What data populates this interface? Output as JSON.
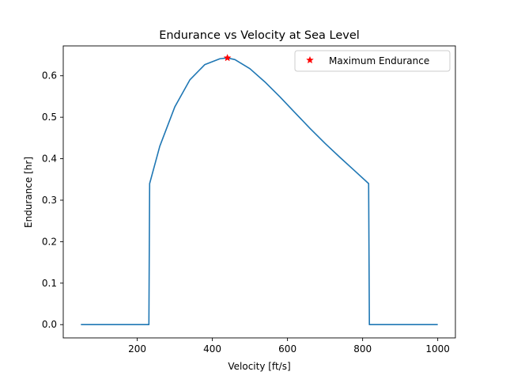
{
  "chart_data": {
    "type": "line",
    "title": "Endurance vs Velocity at Sea Level",
    "xlabel": "Velocity [ft/s]",
    "ylabel": "Endurance [hr]",
    "xlim": [
      3,
      1047
    ],
    "ylim": [
      -0.032,
      0.672
    ],
    "xticks": [
      200,
      400,
      600,
      800,
      1000
    ],
    "xtick_labels": [
      "200",
      "400",
      "600",
      "800",
      "1000"
    ],
    "yticks": [
      0.0,
      0.1,
      0.2,
      0.3,
      0.4,
      0.5,
      0.6
    ],
    "ytick_labels": [
      "0.0",
      "0.1",
      "0.2",
      "0.3",
      "0.4",
      "0.5",
      "0.6"
    ],
    "grid": false,
    "legend_position": "top-right",
    "series": [
      {
        "name": "",
        "color": "#1f77b4",
        "x": [
          50,
          100,
          150,
          200,
          231,
          233,
          260,
          300,
          340,
          380,
          420,
          440,
          460,
          500,
          540,
          580,
          620,
          660,
          700,
          740,
          780,
          816,
          818,
          850,
          900,
          950,
          1000
        ],
        "y": [
          0.0,
          0.0,
          0.0,
          0.0,
          0.0,
          0.34,
          0.43,
          0.525,
          0.59,
          0.627,
          0.641,
          0.643,
          0.639,
          0.617,
          0.585,
          0.549,
          0.511,
          0.473,
          0.437,
          0.403,
          0.37,
          0.34,
          0.0,
          0.0,
          0.0,
          0.0,
          0.0
        ]
      },
      {
        "name": "Maximum Endurance",
        "type": "scatter",
        "marker": "star",
        "color": "#ff0000",
        "x": [
          440
        ],
        "y": [
          0.643
        ]
      }
    ]
  }
}
